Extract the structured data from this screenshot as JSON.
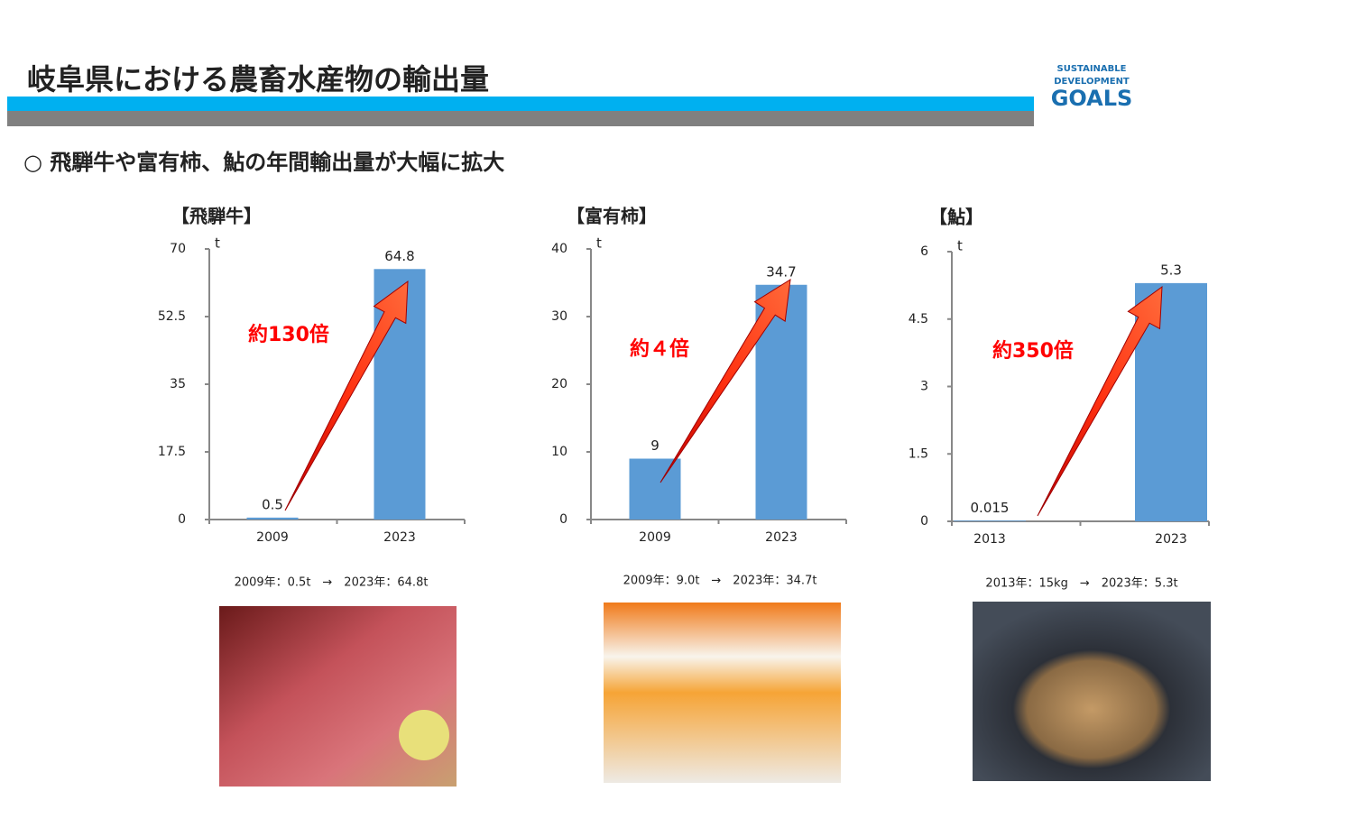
{
  "header": {
    "title": "岐阜県における農畜水産物の輸出量",
    "subtitle": "○ 飛騨牛や富有柿、鮎の年間輸出量が大幅に拡大"
  },
  "logo": {
    "line1": "SUSTAINABLE",
    "line2": "DEVELOPMENT",
    "line3": "GOALS"
  },
  "chart_data": [
    {
      "type": "bar",
      "title": "【飛騨牛】",
      "unit": "t",
      "annotation": "約130倍",
      "caption": "2009年：0.5t　→　2023年：64.8t",
      "categories": [
        "2009",
        "2023"
      ],
      "values": [
        0.5,
        64.8
      ],
      "color": "#5b9bd5",
      "ylim": [
        0,
        70
      ],
      "yticks": [
        0,
        17.5,
        35,
        52.5,
        70
      ]
    },
    {
      "type": "bar",
      "title": "【富有柿】",
      "unit": "t",
      "annotation": "約４倍",
      "caption": "2009年：9.0t　→　2023年：34.7t",
      "categories": [
        "2009",
        "2023"
      ],
      "values": [
        9,
        34.7
      ],
      "color": "#5b9bd5",
      "ylim": [
        0,
        40
      ],
      "yticks": [
        0,
        10,
        20,
        30,
        40
      ]
    },
    {
      "type": "bar",
      "title": "【鮎】",
      "unit": "t",
      "annotation": "約350倍",
      "caption": "2013年：15kg　→　2023年：5.3t",
      "categories": [
        "2013",
        "2023"
      ],
      "values": [
        0.015,
        5.3
      ],
      "color": "#5b9bd5",
      "ylim": [
        0,
        6
      ],
      "yticks": [
        0,
        1.5,
        3,
        4.5,
        6
      ]
    }
  ]
}
